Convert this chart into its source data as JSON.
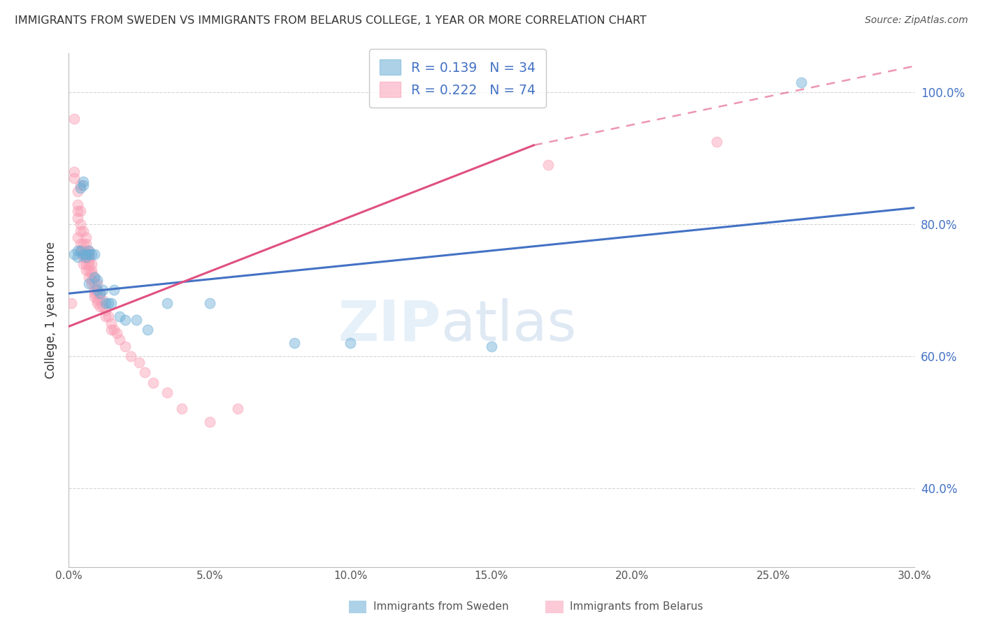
{
  "title": "IMMIGRANTS FROM SWEDEN VS IMMIGRANTS FROM BELARUS COLLEGE, 1 YEAR OR MORE CORRELATION CHART",
  "source": "Source: ZipAtlas.com",
  "ylabel": "College, 1 year or more",
  "xlim": [
    0.0,
    0.3
  ],
  "ylim": [
    0.28,
    1.06
  ],
  "yticks": [
    0.4,
    0.6,
    0.8,
    1.0
  ],
  "xticks": [
    0.0,
    0.05,
    0.1,
    0.15,
    0.2,
    0.25,
    0.3
  ],
  "sweden_color": "#6baed6",
  "belarus_color": "#fa9fb5",
  "sweden_R": 0.139,
  "sweden_N": 34,
  "belarus_R": 0.222,
  "belarus_N": 74,
  "sweden_line_color": "#4472c4",
  "belarus_line_color": "#e05080",
  "right_tick_color": "#4472c4",
  "background_color": "#ffffff",
  "grid_color": "#cccccc",
  "title_color": "#333333",
  "sweden_scatter_x": [
    0.002,
    0.003,
    0.003,
    0.004,
    0.004,
    0.005,
    0.005,
    0.005,
    0.006,
    0.006,
    0.007,
    0.007,
    0.007,
    0.008,
    0.009,
    0.009,
    0.01,
    0.01,
    0.011,
    0.012,
    0.013,
    0.014,
    0.015,
    0.016,
    0.018,
    0.02,
    0.024,
    0.028,
    0.035,
    0.05,
    0.08,
    0.1,
    0.15,
    0.26
  ],
  "sweden_scatter_y": [
    0.755,
    0.76,
    0.75,
    0.76,
    0.855,
    0.865,
    0.86,
    0.755,
    0.75,
    0.755,
    0.76,
    0.755,
    0.71,
    0.755,
    0.755,
    0.72,
    0.715,
    0.7,
    0.695,
    0.7,
    0.68,
    0.68,
    0.68,
    0.7,
    0.66,
    0.655,
    0.655,
    0.64,
    0.68,
    0.68,
    0.62,
    0.62,
    0.615,
    1.015
  ],
  "belarus_scatter_x": [
    0.001,
    0.002,
    0.002,
    0.002,
    0.003,
    0.003,
    0.003,
    0.003,
    0.003,
    0.004,
    0.004,
    0.004,
    0.004,
    0.004,
    0.004,
    0.005,
    0.005,
    0.005,
    0.005,
    0.005,
    0.005,
    0.006,
    0.006,
    0.006,
    0.006,
    0.006,
    0.006,
    0.006,
    0.007,
    0.007,
    0.007,
    0.007,
    0.007,
    0.007,
    0.007,
    0.008,
    0.008,
    0.008,
    0.008,
    0.008,
    0.009,
    0.009,
    0.009,
    0.009,
    0.009,
    0.01,
    0.01,
    0.01,
    0.01,
    0.01,
    0.011,
    0.011,
    0.011,
    0.012,
    0.012,
    0.013,
    0.013,
    0.014,
    0.015,
    0.015,
    0.016,
    0.017,
    0.018,
    0.02,
    0.022,
    0.025,
    0.027,
    0.03,
    0.035,
    0.04,
    0.05,
    0.06,
    0.17,
    0.23
  ],
  "belarus_scatter_y": [
    0.68,
    0.96,
    0.88,
    0.87,
    0.85,
    0.83,
    0.82,
    0.81,
    0.78,
    0.86,
    0.82,
    0.8,
    0.79,
    0.77,
    0.76,
    0.79,
    0.77,
    0.76,
    0.755,
    0.75,
    0.74,
    0.78,
    0.77,
    0.76,
    0.755,
    0.75,
    0.74,
    0.73,
    0.76,
    0.755,
    0.75,
    0.745,
    0.74,
    0.73,
    0.72,
    0.74,
    0.73,
    0.725,
    0.715,
    0.71,
    0.72,
    0.71,
    0.7,
    0.695,
    0.69,
    0.71,
    0.7,
    0.695,
    0.685,
    0.68,
    0.695,
    0.685,
    0.675,
    0.685,
    0.675,
    0.67,
    0.66,
    0.66,
    0.65,
    0.64,
    0.64,
    0.635,
    0.625,
    0.615,
    0.6,
    0.59,
    0.575,
    0.56,
    0.545,
    0.52,
    0.5,
    0.52,
    0.89,
    0.925
  ],
  "sweden_trend": [
    0.0,
    0.3,
    0.695,
    0.825
  ],
  "belarus_trend_solid": [
    0.0,
    0.165,
    0.645,
    0.92
  ],
  "belarus_trend_dashed": [
    0.165,
    0.3,
    0.92,
    1.04
  ],
  "watermark_zip": "ZIP",
  "watermark_atlas": "atlas",
  "bottom_legend_sweden": "Immigrants from Sweden",
  "bottom_legend_belarus": "Immigrants from Belarus"
}
